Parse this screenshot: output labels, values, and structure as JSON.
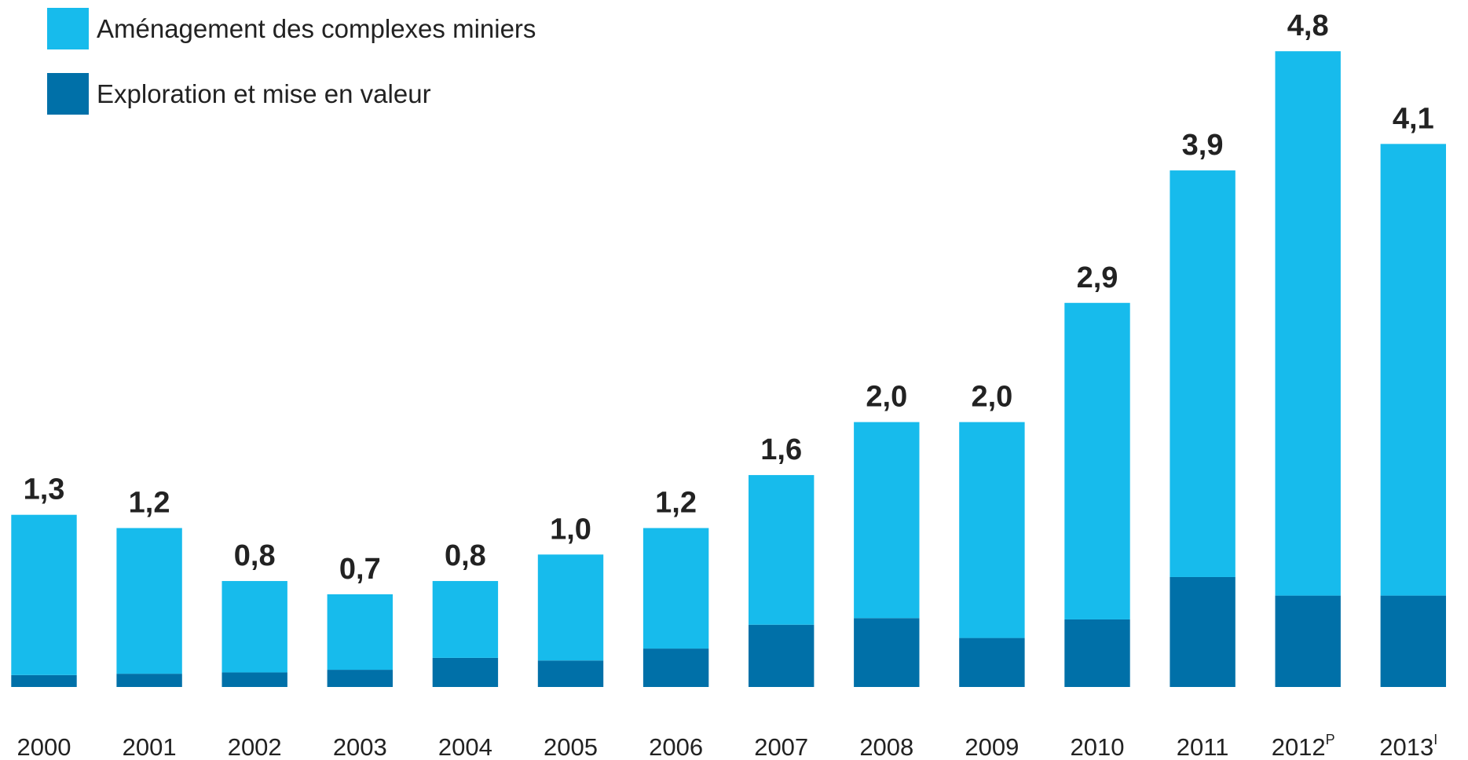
{
  "chart_data": {
    "type": "stacked_bar",
    "categories": [
      "2000",
      "2001",
      "2002",
      "2003",
      "2004",
      "2005",
      "2006",
      "2007",
      "2008",
      "2009",
      "2010",
      "2011",
      "2012",
      "2013"
    ],
    "superscripts": [
      null,
      null,
      null,
      null,
      null,
      null,
      null,
      null,
      null,
      null,
      null,
      null,
      "P",
      "I"
    ],
    "series": [
      {
        "name": "Exploration et mise en valeur",
        "color": "#0070a8",
        "values": [
          0.09,
          0.1,
          0.11,
          0.13,
          0.22,
          0.2,
          0.29,
          0.47,
          0.52,
          0.37,
          0.51,
          0.83,
          0.69,
          0.69
        ]
      },
      {
        "name": "Aménagement des complexes miniers",
        "color": "#17bbec",
        "values": [
          1.21,
          1.1,
          0.69,
          0.57,
          0.58,
          0.8,
          0.91,
          1.13,
          1.48,
          1.63,
          2.39,
          3.07,
          4.11,
          3.41
        ]
      }
    ],
    "totals": [
      1.3,
      1.2,
      0.8,
      0.7,
      0.8,
      1.0,
      1.2,
      1.6,
      2.0,
      2.0,
      2.9,
      3.9,
      4.8,
      4.1
    ],
    "total_labels": [
      "1,3",
      "1,2",
      "0,8",
      "0,7",
      "0,8",
      "1,0",
      "1,2",
      "1,6",
      "2,0",
      "2,0",
      "2,9",
      "3,9",
      "4,8",
      "4,1"
    ]
  }
}
